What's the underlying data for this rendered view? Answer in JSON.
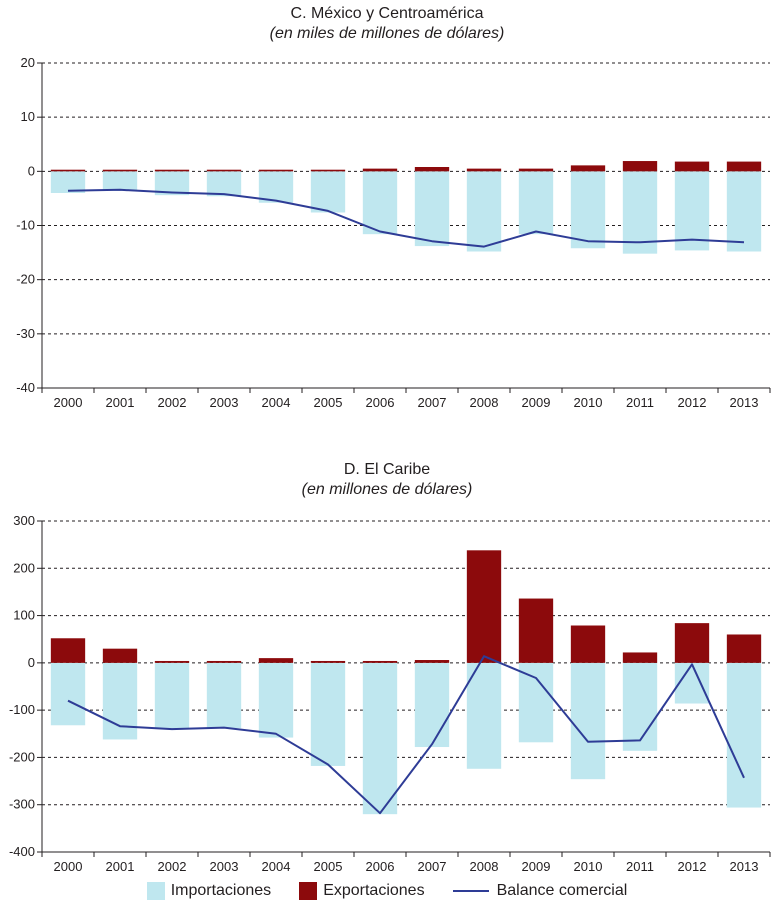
{
  "legend": {
    "importaciones": "Importaciones",
    "exportaciones": "Exportaciones",
    "balance": "Balance comercial"
  },
  "colors": {
    "importaciones": "#bfe7ef",
    "exportaciones": "#8c0a0c",
    "balance": "#2e3c96",
    "grid": "#231f20"
  },
  "chart_data": [
    {
      "type": "bar",
      "title": "C. México y Centroamérica",
      "subtitle": "(en miles de millones de dólares)",
      "categories": [
        "2000",
        "2001",
        "2002",
        "2003",
        "2004",
        "2005",
        "2006",
        "2007",
        "2008",
        "2009",
        "2010",
        "2011",
        "2012",
        "2013"
      ],
      "ylim": [
        -40,
        20
      ],
      "yticks": [
        20,
        10,
        0,
        -10,
        -20,
        -30,
        -40
      ],
      "grid": true,
      "series": [
        {
          "name": "Importaciones",
          "type": "bar",
          "values": [
            -4.0,
            -3.6,
            -4.4,
            -4.6,
            -5.8,
            -7.6,
            -11.6,
            -13.8,
            -14.8,
            -11.6,
            -14.2,
            -15.2,
            -14.6,
            -14.8
          ]
        },
        {
          "name": "Exportaciones",
          "type": "bar",
          "values": [
            0.3,
            0.3,
            0.3,
            0.3,
            0.3,
            0.3,
            0.5,
            0.8,
            0.5,
            0.5,
            1.1,
            1.9,
            1.8,
            1.8
          ]
        },
        {
          "name": "Balance comercial",
          "type": "line",
          "values": [
            -3.6,
            -3.4,
            -3.9,
            -4.2,
            -5.4,
            -7.3,
            -11.1,
            -12.9,
            -13.9,
            -11.1,
            -12.9,
            -13.1,
            -12.6,
            -13.1
          ]
        }
      ]
    },
    {
      "type": "bar",
      "title": "D. El Caribe",
      "subtitle": "(en millones de dólares)",
      "categories": [
        "2000",
        "2001",
        "2002",
        "2003",
        "2004",
        "2005",
        "2006",
        "2007",
        "2008",
        "2009",
        "2010",
        "2011",
        "2012",
        "2013"
      ],
      "ylim": [
        -400,
        300
      ],
      "yticks": [
        300,
        200,
        100,
        0,
        -100,
        -200,
        -300,
        -400
      ],
      "grid": true,
      "series": [
        {
          "name": "Importaciones",
          "type": "bar",
          "values": [
            -132,
            -162,
            -140,
            -138,
            -158,
            -218,
            -320,
            -178,
            -224,
            -168,
            -246,
            -186,
            -86,
            -306
          ]
        },
        {
          "name": "Exportaciones",
          "type": "bar",
          "values": [
            52,
            30,
            4,
            4,
            10,
            4,
            4,
            6,
            238,
            136,
            79,
            22,
            84,
            60
          ]
        },
        {
          "name": "Balance comercial",
          "type": "line",
          "values": [
            -80,
            -134,
            -140,
            -137,
            -150,
            -215,
            -318,
            -172,
            14,
            -32,
            -167,
            -164,
            -3,
            -243
          ]
        }
      ]
    }
  ]
}
